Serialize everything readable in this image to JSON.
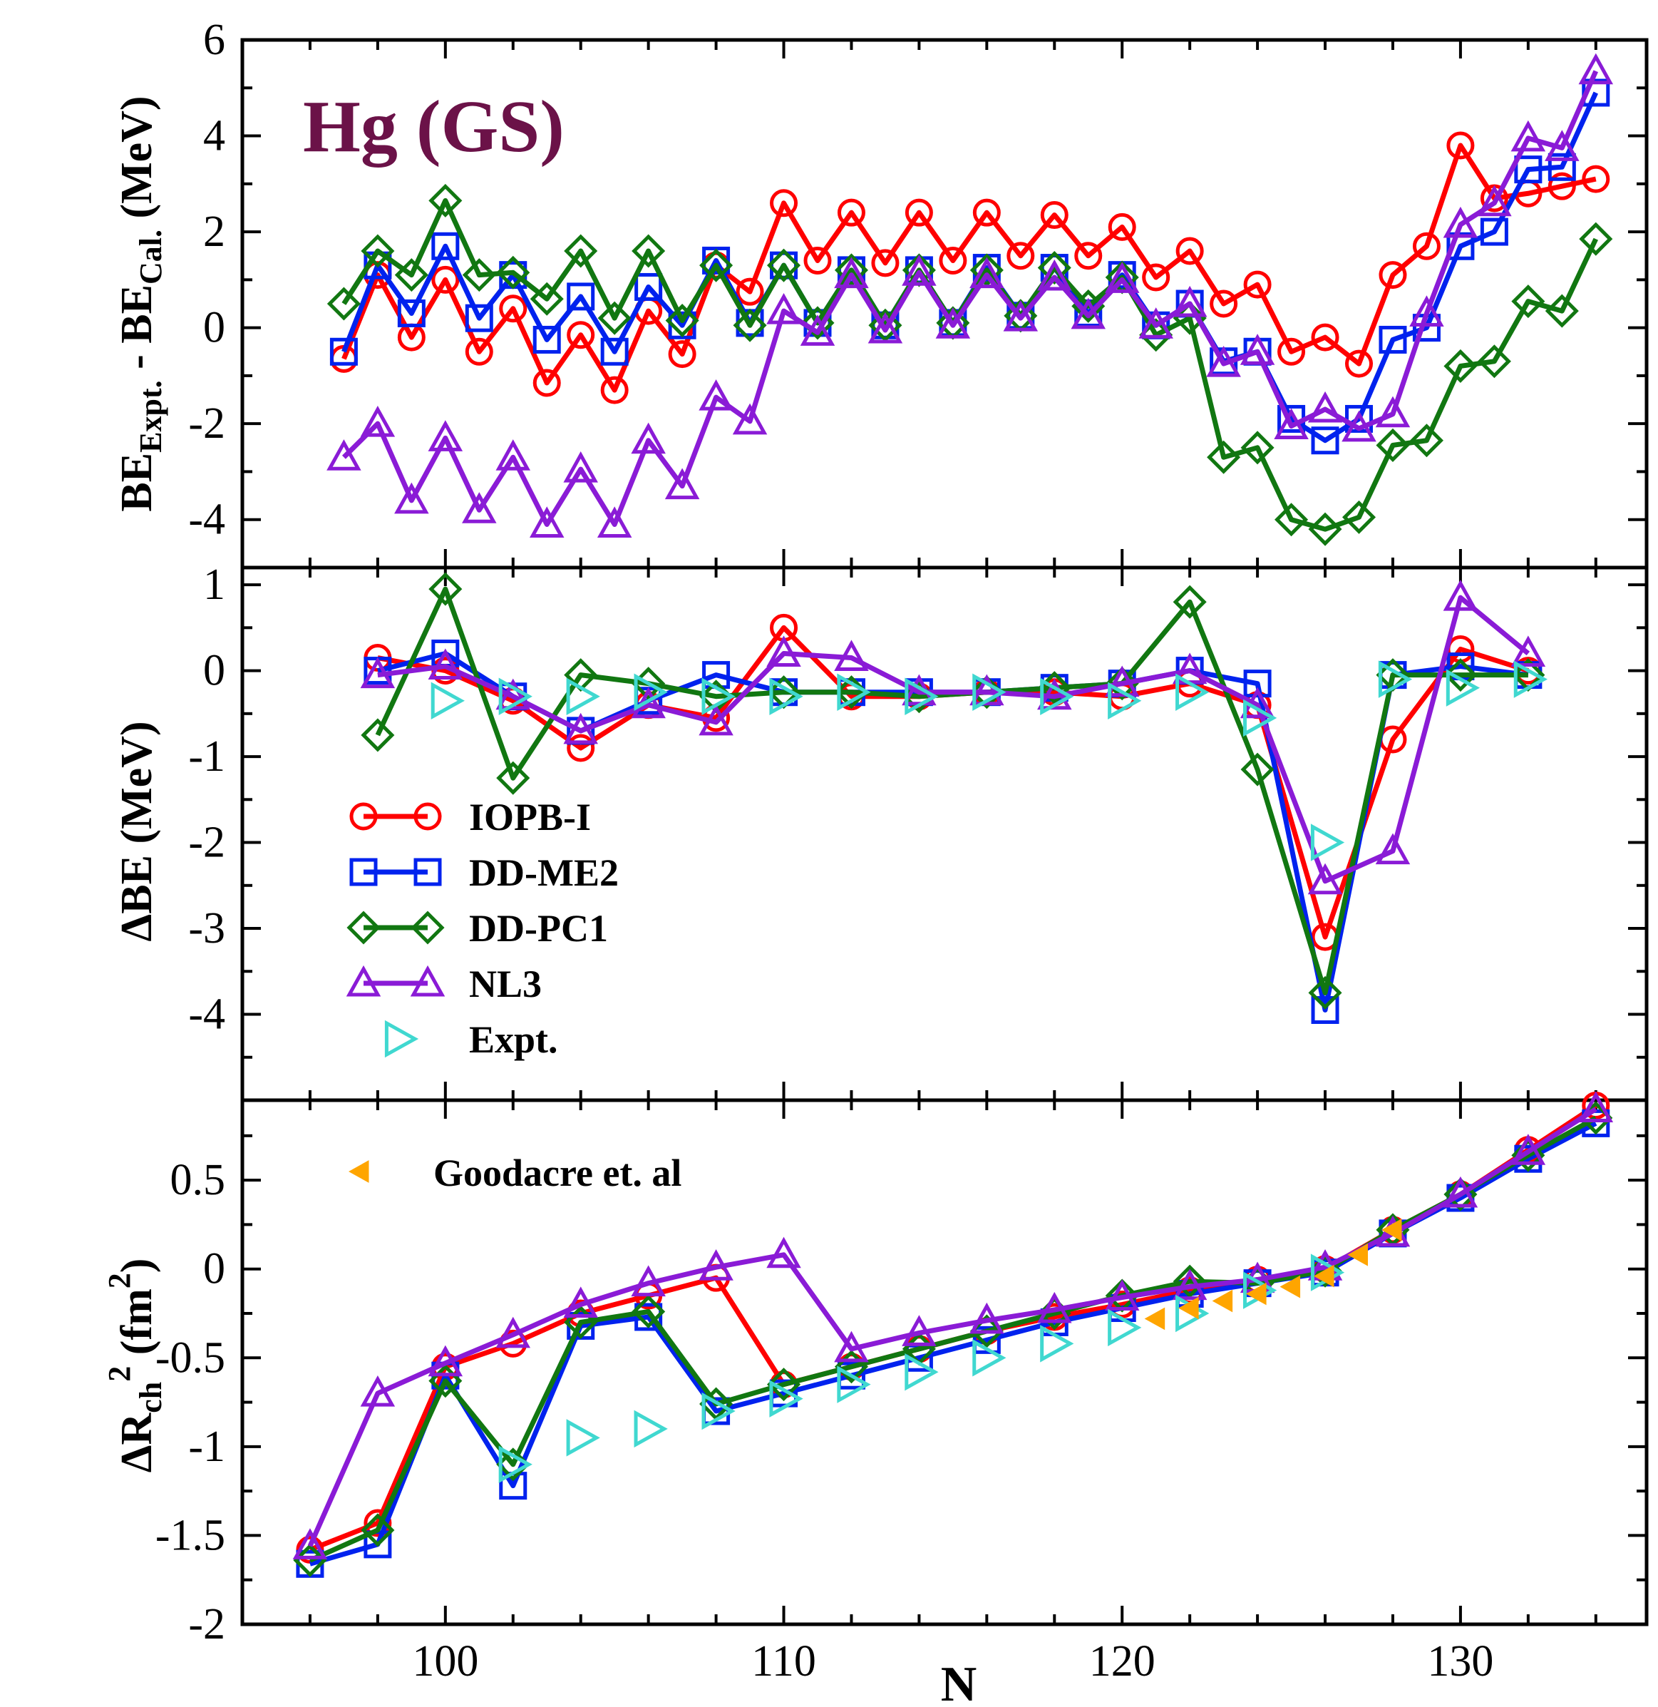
{
  "chart_data": [
    {
      "type": "line",
      "panel": "top",
      "title": "Hg (GS)",
      "title_color": "#6b1248",
      "ylabel_main": "BE",
      "ylabel_sub1": "Expt.",
      "ylabel_mid": " - BE",
      "ylabel_sub2": "Cal.",
      "ylabel_unit": " (MeV)",
      "xlim": [
        94,
        135.5
      ],
      "ylim": [
        -5,
        6
      ],
      "yticks": [
        -4,
        -2,
        0,
        2,
        4,
        6
      ],
      "yticklabels": [
        "-4",
        "-2",
        "0",
        "2",
        "4",
        "6"
      ],
      "series": [
        {
          "name": "IOPB-I",
          "color": "#ff0000",
          "marker": "circle",
          "x": [
            97,
            98,
            99,
            100,
            101,
            102,
            103,
            104,
            105,
            106,
            107,
            108,
            109,
            110,
            111,
            112,
            113,
            114,
            115,
            116,
            117,
            118,
            119,
            120,
            121,
            122,
            123,
            124,
            125,
            126,
            127,
            128,
            129,
            130,
            131,
            132,
            133,
            134
          ],
          "y": [
            -0.65,
            1.1,
            -0.2,
            1.0,
            -0.5,
            0.4,
            -1.15,
            -0.15,
            -1.3,
            0.35,
            -0.55,
            1.3,
            0.75,
            2.6,
            1.4,
            2.4,
            1.35,
            2.4,
            1.4,
            2.4,
            1.5,
            2.35,
            1.5,
            2.1,
            1.05,
            1.6,
            0.5,
            0.9,
            -0.5,
            -0.2,
            -0.75,
            1.1,
            1.7,
            3.8,
            2.7,
            2.8,
            2.95,
            3.1
          ]
        },
        {
          "name": "DD-ME2",
          "color": "#0022ee",
          "marker": "square",
          "x": [
            97,
            98,
            99,
            100,
            101,
            102,
            103,
            104,
            105,
            106,
            107,
            108,
            109,
            110,
            111,
            112,
            113,
            114,
            115,
            116,
            117,
            118,
            119,
            120,
            121,
            122,
            123,
            124,
            125,
            126,
            127,
            128,
            129,
            130,
            131,
            132,
            133,
            134
          ],
          "y": [
            -0.5,
            1.3,
            0.3,
            1.7,
            0.2,
            1.1,
            -0.25,
            0.65,
            -0.5,
            0.85,
            0.05,
            1.4,
            0.1,
            1.3,
            0.1,
            1.2,
            0.05,
            1.2,
            0.1,
            1.25,
            0.25,
            1.25,
            0.3,
            1.1,
            0.05,
            0.5,
            -0.7,
            -0.5,
            -1.9,
            -2.35,
            -1.9,
            -0.25,
            0.0,
            1.7,
            2.0,
            3.3,
            3.35,
            4.9
          ]
        },
        {
          "name": "DD-PC1",
          "color": "#117711",
          "marker": "diamond",
          "x": [
            97,
            98,
            99,
            100,
            101,
            102,
            103,
            104,
            105,
            106,
            107,
            108,
            109,
            110,
            111,
            112,
            113,
            114,
            115,
            116,
            117,
            118,
            119,
            120,
            121,
            122,
            123,
            124,
            125,
            126,
            127,
            128,
            129,
            130,
            131,
            132,
            133,
            134
          ],
          "y": [
            0.5,
            1.6,
            1.1,
            2.65,
            1.1,
            1.15,
            0.6,
            1.6,
            0.2,
            1.6,
            0.15,
            1.3,
            0.05,
            1.3,
            0.1,
            1.2,
            0.05,
            1.2,
            0.1,
            1.2,
            0.25,
            1.25,
            0.45,
            1.05,
            -0.15,
            0.2,
            -2.7,
            -2.5,
            -4.0,
            -4.2,
            -3.95,
            -2.45,
            -2.35,
            -0.8,
            -0.7,
            0.55,
            0.35,
            1.85
          ]
        },
        {
          "name": "NL3",
          "color": "#8a1bd6",
          "marker": "triangle-up",
          "x": [
            97,
            98,
            99,
            100,
            101,
            102,
            103,
            104,
            105,
            106,
            107,
            108,
            109,
            110,
            111,
            112,
            113,
            114,
            115,
            116,
            117,
            118,
            119,
            120,
            121,
            122,
            123,
            124,
            125,
            126,
            127,
            128,
            129,
            130,
            131,
            132,
            133,
            134
          ],
          "y": [
            -2.7,
            -2.0,
            -3.6,
            -2.3,
            -3.8,
            -2.7,
            -4.1,
            -2.95,
            -4.1,
            -2.35,
            -3.3,
            -1.45,
            -1.95,
            0.35,
            -0.1,
            1.1,
            -0.05,
            1.15,
            0.05,
            1.1,
            0.2,
            1.05,
            0.25,
            1.0,
            0.05,
            0.5,
            -0.75,
            -0.5,
            -2.05,
            -1.7,
            -2.1,
            -1.8,
            0.3,
            2.15,
            2.6,
            3.95,
            3.75,
            5.35
          ]
        }
      ]
    },
    {
      "type": "line",
      "panel": "middle",
      "ylabel": "ΔBE (MeV)",
      "xlim": [
        94,
        135.5
      ],
      "ylim": [
        -5,
        1.2
      ],
      "yticks": [
        -4,
        -3,
        -2,
        -1,
        0,
        1
      ],
      "yticklabels": [
        "-4",
        "-3",
        "-2",
        "-1",
        "0",
        "1"
      ],
      "series": [
        {
          "name": "IOPB-I",
          "color": "#ff0000",
          "marker": "circle",
          "x": [
            98,
            100,
            102,
            104,
            106,
            108,
            110,
            112,
            114,
            116,
            118,
            120,
            122,
            124,
            126,
            128,
            130,
            132
          ],
          "y": [
            0.15,
            0.0,
            -0.35,
            -0.9,
            -0.4,
            -0.55,
            0.5,
            -0.3,
            -0.3,
            -0.25,
            -0.25,
            -0.3,
            -0.15,
            -0.4,
            -3.1,
            -0.8,
            0.25,
            0.0
          ]
        },
        {
          "name": "DD-ME2",
          "color": "#0022ee",
          "marker": "square",
          "x": [
            98,
            100,
            102,
            104,
            106,
            108,
            110,
            112,
            114,
            116,
            118,
            120,
            122,
            124,
            126,
            128,
            130,
            132
          ],
          "y": [
            0.0,
            0.2,
            -0.3,
            -0.7,
            -0.35,
            -0.05,
            -0.25,
            -0.25,
            -0.25,
            -0.25,
            -0.2,
            -0.15,
            0.0,
            -0.15,
            -3.95,
            -0.05,
            0.05,
            -0.05
          ]
        },
        {
          "name": "DD-PC1",
          "color": "#117711",
          "marker": "diamond",
          "x": [
            98,
            100,
            102,
            104,
            106,
            108,
            110,
            112,
            114,
            116,
            118,
            120,
            122,
            124,
            126,
            128,
            130,
            132
          ],
          "y": [
            -0.75,
            0.95,
            -1.25,
            -0.05,
            -0.15,
            -0.3,
            -0.25,
            -0.25,
            -0.3,
            -0.25,
            -0.2,
            -0.15,
            0.8,
            -1.15,
            -3.75,
            -0.05,
            -0.05,
            -0.05
          ]
        },
        {
          "name": "NL3",
          "color": "#8a1bd6",
          "marker": "triangle-up",
          "x": [
            98,
            100,
            102,
            104,
            106,
            108,
            110,
            112,
            114,
            116,
            118,
            120,
            122,
            124,
            126,
            128,
            130,
            132
          ],
          "y": [
            -0.05,
            0.05,
            -0.3,
            -0.7,
            -0.4,
            -0.6,
            0.2,
            0.15,
            -0.25,
            -0.25,
            -0.3,
            -0.15,
            0.0,
            -0.4,
            -2.45,
            -2.1,
            0.85,
            0.2
          ]
        },
        {
          "name": "Expt.",
          "color": "#40d8d0",
          "marker": "triangle-right",
          "line": false,
          "x": [
            100,
            102,
            104,
            106,
            108,
            110,
            112,
            114,
            116,
            118,
            120,
            122,
            124,
            126,
            128,
            130,
            132
          ],
          "y": [
            -0.35,
            -0.3,
            -0.3,
            -0.25,
            -0.3,
            -0.3,
            -0.25,
            -0.3,
            -0.25,
            -0.3,
            -0.35,
            -0.25,
            -0.55,
            -2.0,
            -0.1,
            -0.2,
            -0.1
          ]
        }
      ],
      "legend": [
        "IOPB-I",
        "DD-ME2",
        "DD-PC1",
        "NL3",
        "Expt."
      ]
    },
    {
      "type": "line",
      "panel": "bottom",
      "ylabel_main": "ΔR",
      "ylabel_sub": "ch",
      "ylabel_sup": "2",
      "ylabel_open": " (fm",
      "ylabel_sup2": "2",
      "ylabel_close": ")",
      "xlabel": "N",
      "xlim": [
        94,
        135.5
      ],
      "ylim": [
        -2,
        0.95
      ],
      "xticks": [
        100,
        110,
        120,
        130
      ],
      "xticklabels": [
        "100",
        "110",
        "120",
        "130"
      ],
      "yticks": [
        -2,
        -1.5,
        -1,
        -0.5,
        0,
        0.5
      ],
      "yticklabels": [
        "-2",
        "-1.5",
        "-1",
        "-0.5",
        "0",
        "0.5"
      ],
      "series": [
        {
          "name": "IOPB-I",
          "color": "#ff0000",
          "marker": "circle",
          "x": [
            96,
            98,
            100,
            102,
            104,
            106,
            108,
            110,
            112,
            114,
            116,
            118,
            120,
            122,
            124,
            126,
            128,
            130,
            132,
            134
          ],
          "y": [
            -1.58,
            -1.43,
            -0.55,
            -0.42,
            -0.25,
            -0.15,
            -0.05,
            -0.65,
            -0.55,
            -0.45,
            -0.35,
            -0.27,
            -0.2,
            -0.12,
            -0.06,
            0.0,
            0.22,
            0.42,
            0.67,
            0.92
          ]
        },
        {
          "name": "DD-ME2",
          "color": "#0022ee",
          "marker": "square",
          "x": [
            96,
            98,
            100,
            102,
            104,
            106,
            108,
            110,
            112,
            114,
            116,
            118,
            120,
            122,
            124,
            126,
            128,
            130,
            132,
            134
          ],
          "y": [
            -1.66,
            -1.55,
            -0.6,
            -1.22,
            -0.32,
            -0.27,
            -0.8,
            -0.7,
            -0.6,
            -0.5,
            -0.4,
            -0.3,
            -0.22,
            -0.14,
            -0.08,
            -0.02,
            0.2,
            0.4,
            0.62,
            0.82
          ]
        },
        {
          "name": "DD-PC1",
          "color": "#117711",
          "marker": "diamond",
          "x": [
            96,
            98,
            100,
            102,
            104,
            106,
            108,
            110,
            112,
            114,
            116,
            118,
            120,
            122,
            124,
            126,
            128,
            130,
            132,
            134
          ],
          "y": [
            -1.64,
            -1.47,
            -0.63,
            -1.1,
            -0.3,
            -0.24,
            -0.76,
            -0.65,
            -0.55,
            -0.45,
            -0.35,
            -0.25,
            -0.15,
            -0.07,
            -0.08,
            -0.01,
            0.22,
            0.42,
            0.64,
            0.85
          ]
        },
        {
          "name": "NL3",
          "color": "#8a1bd6",
          "marker": "triangle-up",
          "x": [
            96,
            98,
            100,
            102,
            104,
            106,
            108,
            110,
            112,
            114,
            116,
            118,
            120,
            122,
            124,
            126,
            128,
            130,
            132,
            134
          ],
          "y": [
            -1.56,
            -0.7,
            -0.53,
            -0.37,
            -0.2,
            -0.08,
            0.01,
            0.08,
            -0.45,
            -0.36,
            -0.29,
            -0.23,
            -0.16,
            -0.1,
            -0.06,
            0.01,
            0.2,
            0.42,
            0.66,
            0.9
          ]
        },
        {
          "name": "Expt.",
          "color": "#40d8d0",
          "marker": "triangle-right",
          "line": false,
          "x": [
            102,
            104,
            106,
            108,
            110,
            112,
            114,
            116,
            118,
            120,
            122,
            124,
            126
          ],
          "y": [
            -1.1,
            -0.95,
            -0.9,
            -0.8,
            -0.73,
            -0.65,
            -0.58,
            -0.5,
            -0.42,
            -0.33,
            -0.25,
            -0.12,
            -0.02
          ]
        },
        {
          "name": "Goodacre et. al",
          "color": "#ffa500",
          "marker": "triangle-left-filled",
          "line": false,
          "x": [
            121,
            122,
            123,
            124,
            125,
            126,
            127,
            128
          ],
          "y": [
            -0.28,
            -0.22,
            -0.18,
            -0.14,
            -0.1,
            -0.04,
            0.08,
            0.22
          ]
        }
      ],
      "legend": [
        "Goodacre et. al"
      ]
    }
  ]
}
